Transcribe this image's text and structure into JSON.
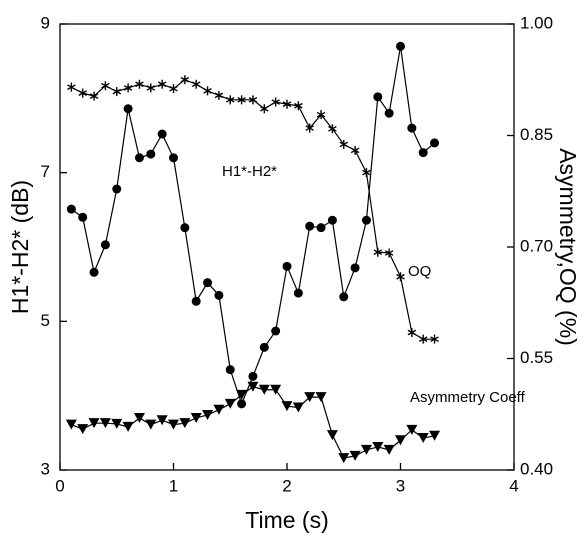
{
  "chart_data": {
    "type": "line",
    "xlabel": "Time (s)",
    "ylabel": "H1*-H2* (dB)",
    "y2label": "Asymmetry,OQ (%)",
    "annotations": [
      "H1*-H2*",
      "OQ",
      "Asymmetry Coeff"
    ],
    "x": [
      0.1,
      0.2,
      0.3,
      0.4,
      0.5,
      0.6,
      0.7,
      0.8,
      0.9,
      1.0,
      1.1,
      1.2,
      1.3,
      1.4,
      1.5,
      1.6,
      1.7,
      1.8,
      1.9,
      2.0,
      2.1,
      2.2,
      2.3,
      2.4,
      2.5,
      2.6,
      2.7,
      2.8,
      2.9,
      3.0,
      3.1,
      3.2,
      3.3
    ],
    "series": [
      {
        "name": "H1*-H2*",
        "color": "#000000",
        "marker": "circle",
        "values": [
          6.51,
          6.4,
          5.66,
          6.03,
          6.78,
          7.86,
          7.2,
          7.25,
          7.52,
          7.2,
          6.26,
          5.27,
          5.52,
          5.35,
          4.35,
          3.89,
          4.26,
          4.65,
          4.87,
          5.74,
          5.38,
          6.28,
          6.26,
          6.36,
          5.33,
          5.72,
          6.36,
          8.02,
          7.8,
          8.7,
          7.6,
          7.27,
          7.4
        ]
      },
      {
        "name": "OQ",
        "color": "#000000",
        "marker": "asterisk",
        "axis": "y2",
        "values": [
          0.915,
          0.907,
          0.903,
          0.917,
          0.909,
          0.914,
          0.919,
          0.914,
          0.919,
          0.913,
          0.925,
          0.919,
          0.91,
          0.904,
          0.898,
          0.898,
          0.898,
          0.886,
          0.895,
          0.892,
          0.89,
          0.86,
          0.878,
          0.859,
          0.838,
          0.83,
          0.8,
          0.693,
          0.692,
          0.66,
          0.585,
          0.576,
          0.576
        ]
      },
      {
        "name": "Asymmetry Coeff",
        "color": "#000000",
        "marker": "triangle-down",
        "axis": "y2",
        "values": [
          0.461,
          0.455,
          0.463,
          0.463,
          0.462,
          0.458,
          0.47,
          0.461,
          0.467,
          0.461,
          0.463,
          0.47,
          0.474,
          0.481,
          0.489,
          0.501,
          0.512,
          0.508,
          0.508,
          0.486,
          0.484,
          0.498,
          0.498,
          0.447,
          0.416,
          0.419,
          0.427,
          0.431,
          0.427,
          0.44,
          0.454,
          0.443,
          0.446
        ]
      }
    ],
    "xlim": [
      0,
      4
    ],
    "xticks": [
      0,
      1,
      2,
      3,
      4
    ],
    "ylim": [
      3,
      9
    ],
    "yticks": [
      3,
      5,
      7,
      9
    ],
    "y2lim": [
      0.4,
      1.0
    ],
    "y2ticks": [
      {
        "value": 0.4,
        "label": "0.40"
      },
      0.55,
      {
        "value": 0.7,
        "label": "0.70"
      },
      0.85,
      {
        "value": 1.0,
        "label": "1.00"
      }
    ],
    "grid": false
  }
}
